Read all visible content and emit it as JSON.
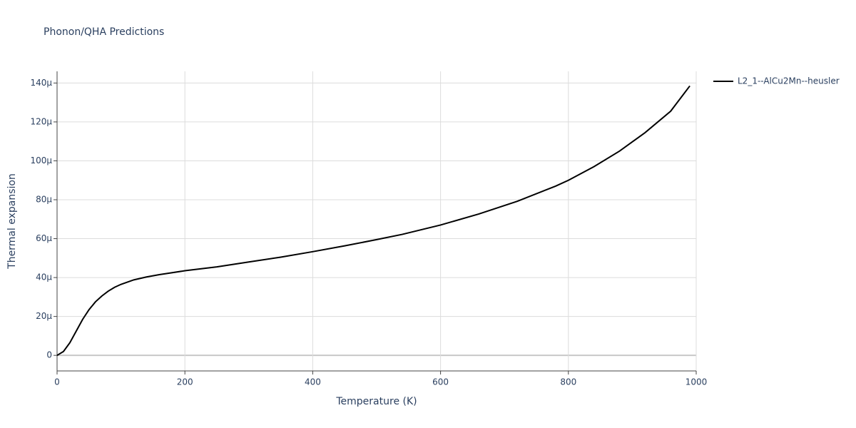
{
  "chart_data": {
    "type": "line",
    "title": "Phonon/QHA Predictions",
    "x_label": "Temperature (K)",
    "y_label": "Thermal expansion",
    "x": [
      0,
      10,
      20,
      30,
      40,
      50,
      60,
      70,
      80,
      90,
      100,
      120,
      140,
      160,
      200,
      250,
      300,
      350,
      400,
      450,
      500,
      540,
      600,
      660,
      720,
      780,
      800,
      840,
      880,
      920,
      960,
      990
    ],
    "series": [
      {
        "name": "L2_1--AlCu2Mn--heusler",
        "color": "#000000",
        "values": [
          0,
          2e-06,
          6.5e-06,
          1.25e-05,
          1.85e-05,
          2.35e-05,
          2.75e-05,
          3.05e-05,
          3.3e-05,
          3.5e-05,
          3.65e-05,
          3.88e-05,
          4.03e-05,
          4.15e-05,
          4.35e-05,
          4.55e-05,
          4.8e-05,
          5.05e-05,
          5.33e-05,
          5.63e-05,
          5.95e-05,
          6.22e-05,
          6.7e-05,
          7.27e-05,
          7.92e-05,
          8.7e-05,
          9e-05,
          9.7e-05,
          0.000105,
          0.0001145,
          0.0001255,
          0.0001385
        ]
      }
    ],
    "xlim": [
      0,
      1000
    ],
    "xticks": [
      0,
      200,
      400,
      600,
      800,
      1000
    ],
    "ylim": [
      -8e-06,
      0.000146
    ],
    "yticks": [
      0,
      {
        "value": 2e-05,
        "label": "20μ"
      },
      {
        "value": 4e-05,
        "label": "40μ"
      },
      {
        "value": 6e-05,
        "label": "60μ"
      },
      {
        "value": 8e-05,
        "label": "80μ"
      },
      {
        "value": 0.0001,
        "label": "100μ"
      },
      {
        "value": 0.00012,
        "label": "120μ"
      },
      {
        "value": 0.00014,
        "label": "140μ"
      }
    ],
    "grid": true,
    "legend": "right"
  }
}
